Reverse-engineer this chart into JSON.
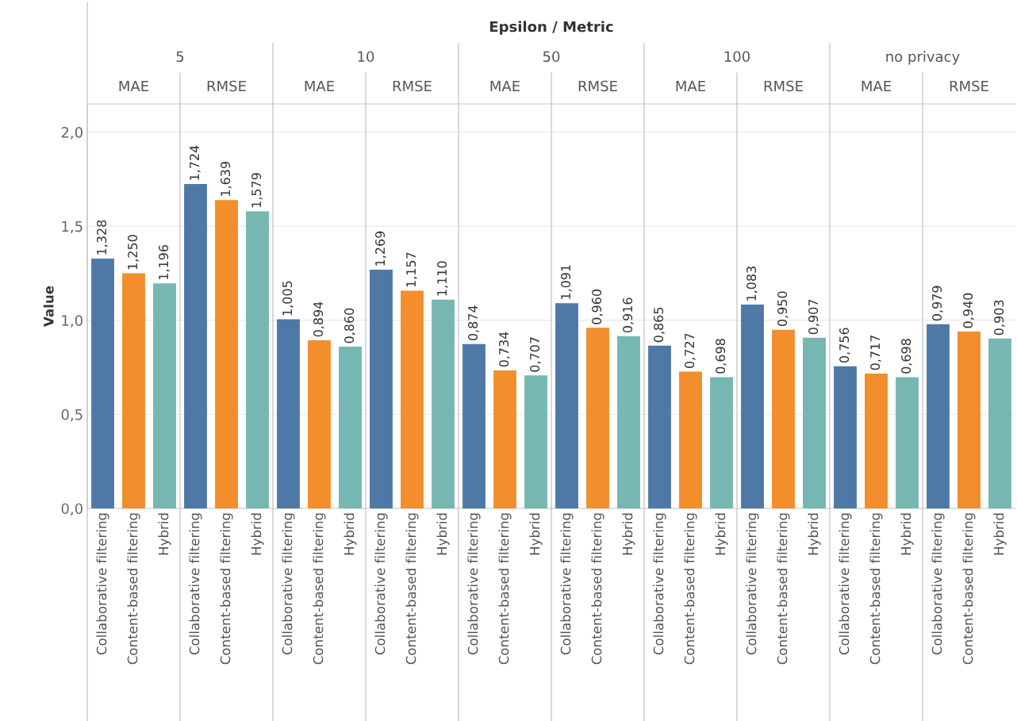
{
  "chart_data": {
    "type": "bar",
    "title": "Epsilon / Metric",
    "ylabel": "Value",
    "categories": [
      "Collaborative filtering",
      "Content-based filtering",
      "Hybrid",
      "Collaborative filtering",
      "Content-based filtering",
      "Hybrid",
      "Collaborative filtering",
      "Content-based filtering",
      "Hybrid",
      "Collaborative filtering",
      "Content-based filtering",
      "Hybrid",
      "Collaborative filtering",
      "Content-based filtering",
      "Hybrid",
      "Collaborative filtering",
      "Content-based filtering",
      "Hybrid",
      "Collaborative filtering",
      "Content-based filtering",
      "Hybrid",
      "Collaborative filtering",
      "Content-based filtering",
      "Hybrid",
      "Collaborative filtering",
      "Content-based filtering",
      "Hybrid",
      "Collaborative filtering",
      "Content-based filtering",
      "Hybrid"
    ],
    "values": [
      1.328,
      1.25,
      1.196,
      1.724,
      1.639,
      1.579,
      1.005,
      0.894,
      0.86,
      1.269,
      1.157,
      1.11,
      0.874,
      0.734,
      0.707,
      1.091,
      0.96,
      0.916,
      0.865,
      0.727,
      0.698,
      1.083,
      0.95,
      0.907,
      0.756,
      0.717,
      0.698,
      0.979,
      0.94,
      0.903
    ],
    "value_labels": [
      "1,328",
      "1,250",
      "1,196",
      "1,724",
      "1,639",
      "1,579",
      "1,005",
      "0,894",
      "0,860",
      "1,269",
      "1,157",
      "1,110",
      "0,874",
      "0,734",
      "0,707",
      "1,091",
      "0,960",
      "0,916",
      "0,865",
      "0,727",
      "0,698",
      "1,083",
      "0,950",
      "0,907",
      "0,756",
      "0,717",
      "0,698",
      "0,979",
      "0,940",
      "0,903"
    ],
    "colors": [
      "#4e79a7",
      "#f28e2b",
      "#76b7b2",
      "#4e79a7",
      "#f28e2b",
      "#76b7b2",
      "#4e79a7",
      "#f28e2b",
      "#76b7b2",
      "#4e79a7",
      "#f28e2b",
      "#76b7b2",
      "#4e79a7",
      "#f28e2b",
      "#76b7b2",
      "#4e79a7",
      "#f28e2b",
      "#76b7b2",
      "#4e79a7",
      "#f28e2b",
      "#76b7b2",
      "#4e79a7",
      "#f28e2b",
      "#76b7b2",
      "#4e79a7",
      "#f28e2b",
      "#76b7b2",
      "#4e79a7",
      "#f28e2b",
      "#76b7b2"
    ],
    "annotations": [
      "5",
      "MAE",
      "RMSE",
      "10",
      "MAE",
      "RMSE",
      "50",
      "MAE",
      "RMSE",
      "100",
      "MAE",
      "RMSE",
      "no privacy",
      "MAE",
      "RMSE"
    ],
    "ylim": [
      0,
      2.15
    ],
    "yticks": [
      {
        "value": 0,
        "label": "0,0"
      },
      {
        "value": 0.5,
        "label": "0,5"
      },
      {
        "value": 1,
        "label": "1,0"
      },
      {
        "value": 1.5,
        "label": "1,5"
      },
      {
        "value": 2,
        "label": "2,0"
      }
    ],
    "grid": "y"
  }
}
